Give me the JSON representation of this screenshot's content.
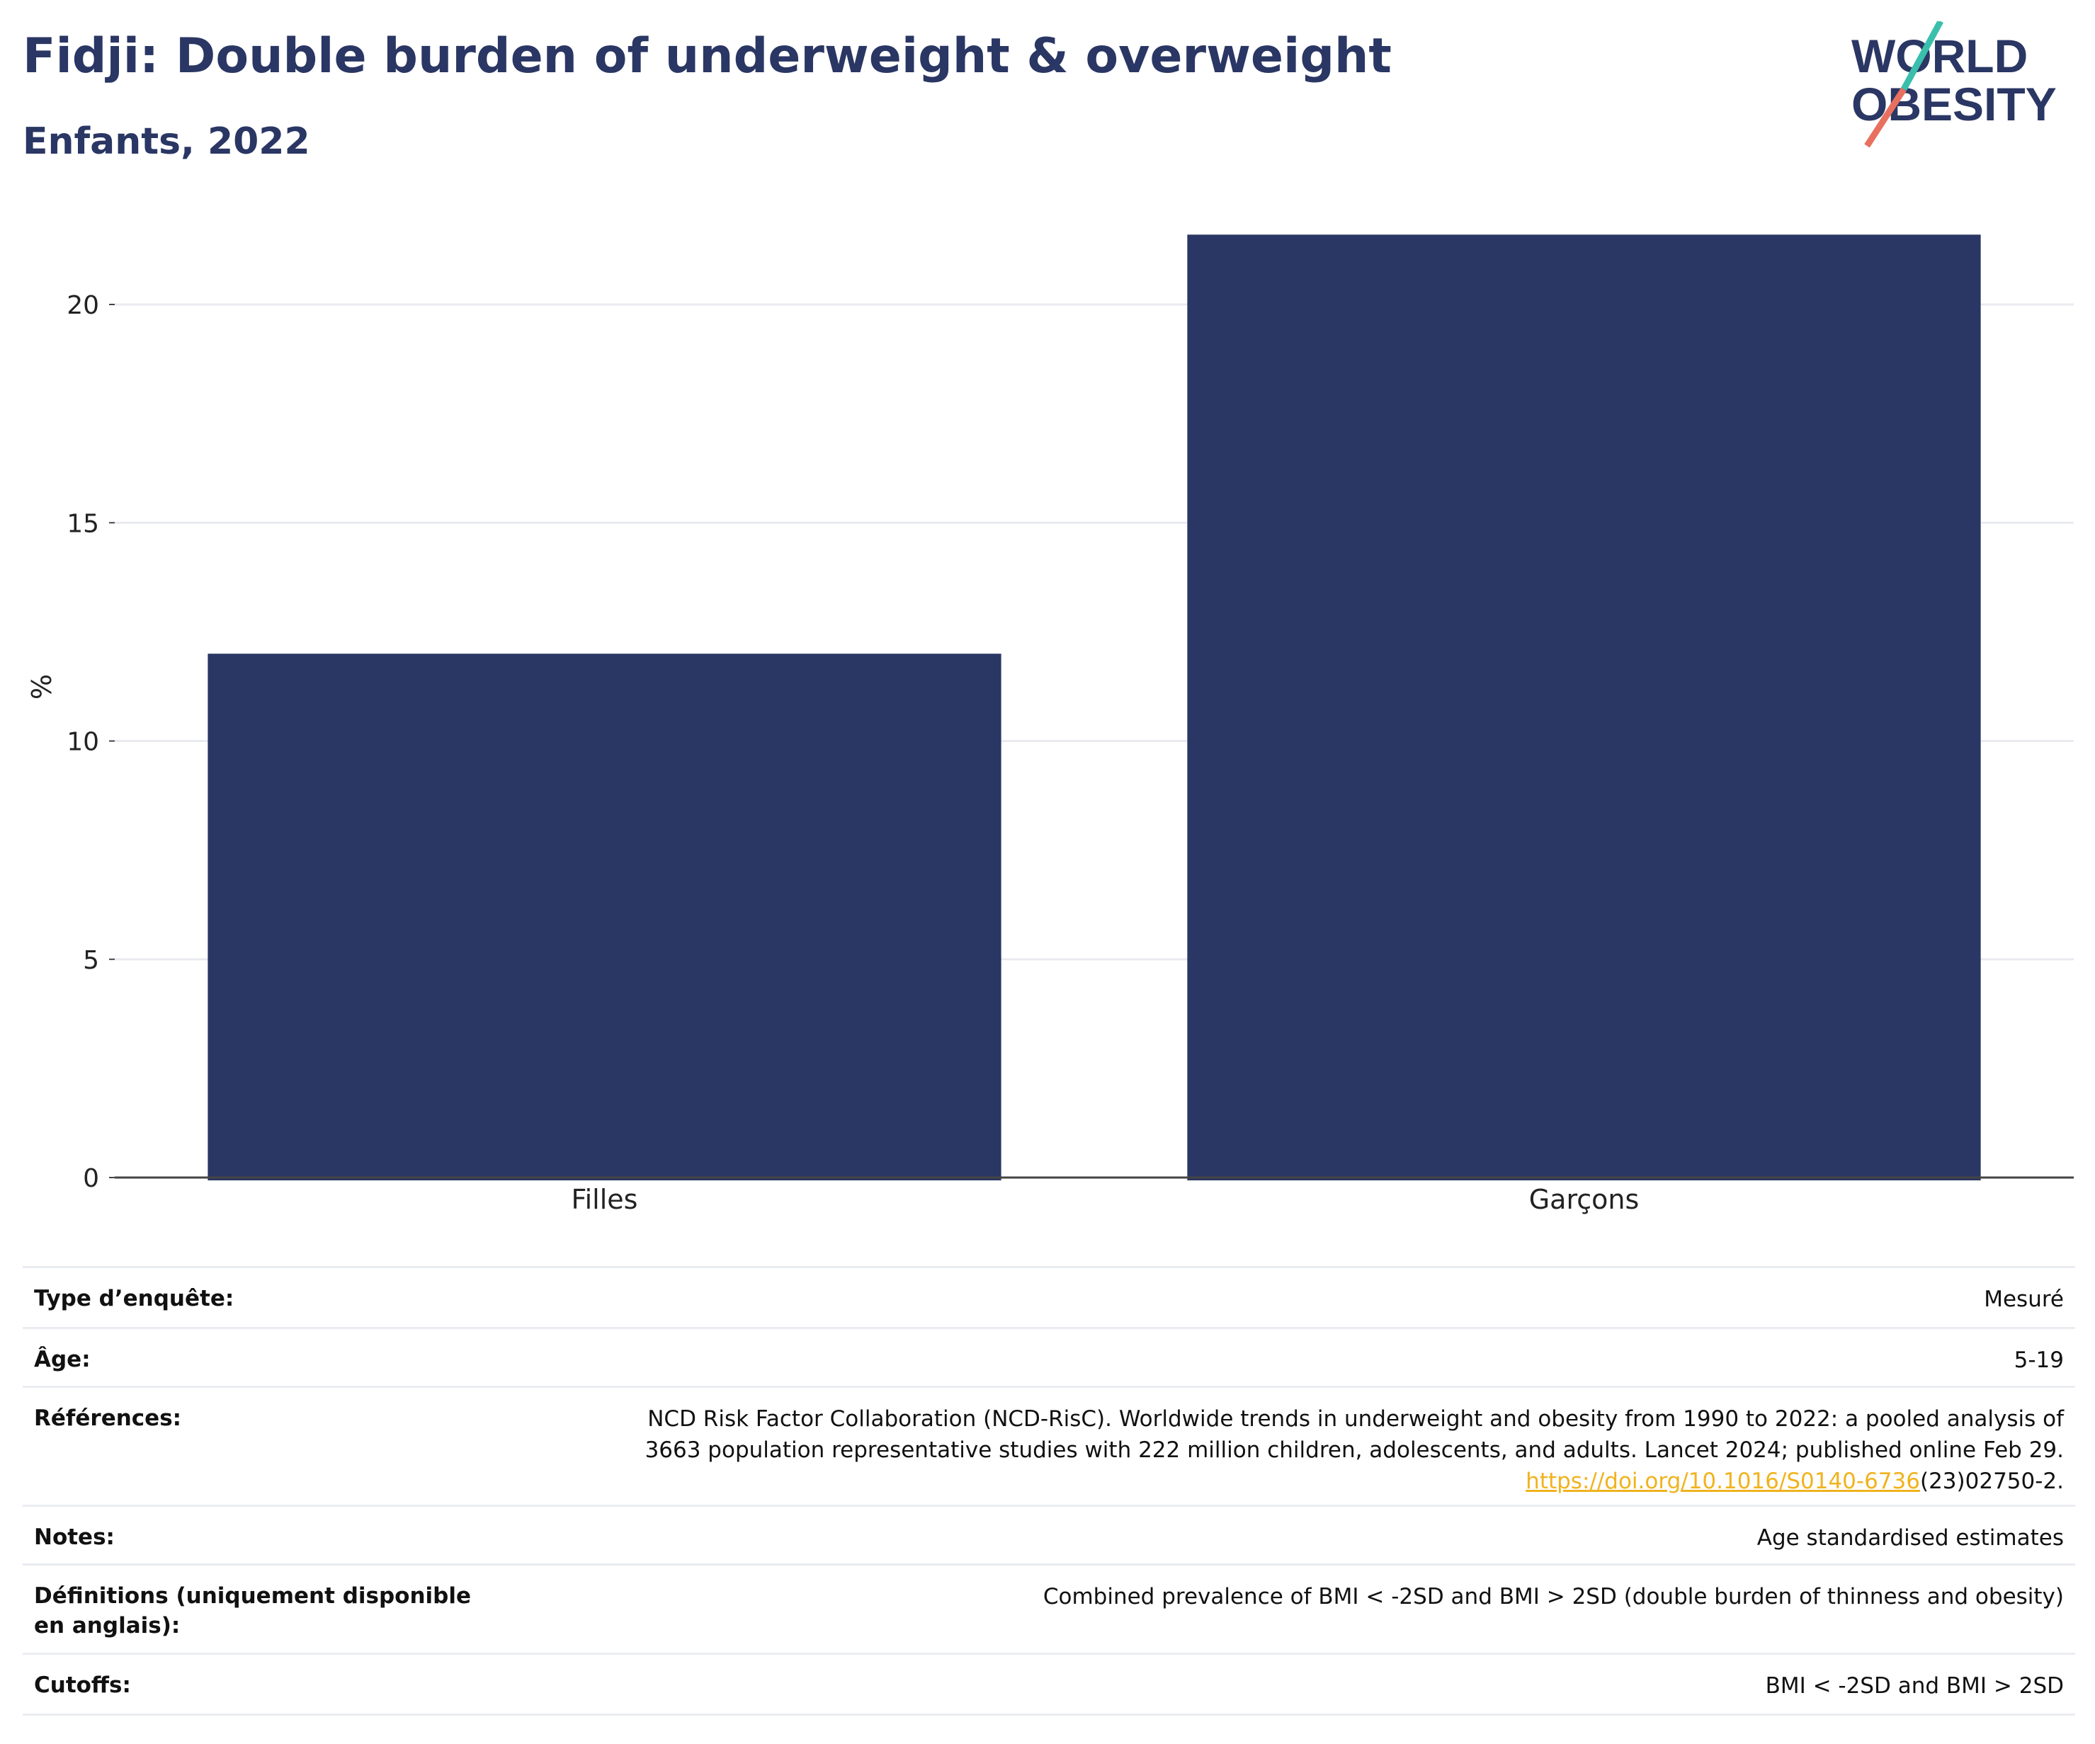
{
  "header": {
    "title": "Fidji: Double burden of underweight & overweight",
    "subtitle": "Enfants, 2022"
  },
  "logo": {
    "line1": "WORLD",
    "line2": "OBESITY",
    "slash_colors": [
      "#3bbfad",
      "#e8705f"
    ]
  },
  "chart_data": {
    "type": "bar",
    "categories": [
      "Filles",
      "Garçons"
    ],
    "values": [
      12.0,
      21.6
    ],
    "ylabel": "%",
    "xlabel": "",
    "ylim": [
      0,
      22.5
    ],
    "yticks": [
      0,
      5,
      10,
      15,
      20
    ],
    "bar_color": "#2a3663",
    "grid": true
  },
  "info": {
    "rows": [
      {
        "key": "Type d’enquête:",
        "value": "Mesuré"
      },
      {
        "key": "Âge:",
        "value": "5-19"
      },
      {
        "key": "Références:",
        "value_line1": "NCD Risk Factor Collaboration (NCD-RisC). Worldwide trends in underweight and obesity from 1990 to 2022: a pooled analysis of",
        "value_line2": "3663 population representative studies with 222 million children, adolescents, and adults. Lancet 2024; published online Feb 29.",
        "link_text": "https://doi.org/10.1016/S0140-6736",
        "link_suffix": "(23)02750-2."
      },
      {
        "key": "Notes:",
        "value": "Age standardised estimates"
      },
      {
        "key": "Définitions (uniquement disponible en anglais):",
        "value": "Combined prevalence of BMI < -2SD and BMI > 2SD (double burden of thinness and obesity)"
      },
      {
        "key": "Cutoffs:",
        "value": "BMI < -2SD and BMI > 2SD"
      }
    ],
    "link_color": "#f0b31e"
  }
}
